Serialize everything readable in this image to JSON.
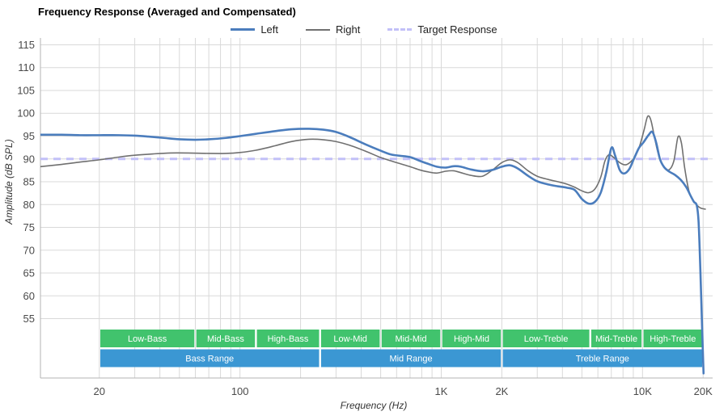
{
  "title": "Frequency Response (Averaged and Compensated)",
  "legend": [
    {
      "label": "Left",
      "color": "#4b7dbd",
      "style": "solid-thick"
    },
    {
      "label": "Right",
      "color": "#707070",
      "style": "solid-thin"
    },
    {
      "label": "Target Response",
      "color": "#c2c0f8",
      "style": "dashed"
    }
  ],
  "chart_data": {
    "type": "line",
    "title": "Frequency Response (Averaged and Compensated)",
    "xlabel": "Frequency (Hz)",
    "ylabel": "Amplitude (dB SPL)",
    "x_scale": "log",
    "xlim": [
      10.2,
      22300
    ],
    "ylim": [
      42,
      116.5
    ],
    "grid": true,
    "legend_position": "top-center",
    "y_ticks": [
      55,
      60,
      65,
      70,
      75,
      80,
      85,
      90,
      95,
      100,
      105,
      110,
      115
    ],
    "x_ticks": [
      {
        "value": 20,
        "label": "20"
      },
      {
        "value": 100,
        "label": "100"
      },
      {
        "value": 1000,
        "label": "1K"
      },
      {
        "value": 2000,
        "label": "2K"
      },
      {
        "value": 10000,
        "label": "10K"
      },
      {
        "value": 20000,
        "label": "20K"
      }
    ],
    "colors": {
      "grid": "#d9d9d9",
      "axis": "#b3b3b3",
      "tick_text": "#4a4a4a"
    },
    "target": {
      "name": "Target Response",
      "value": 90,
      "color": "#c2c0f8"
    },
    "series": [
      {
        "name": "Left",
        "color": "#4b7dbd",
        "width": 2.6,
        "points": [
          [
            10.2,
            95.3
          ],
          [
            13,
            95.3
          ],
          [
            16,
            95.2
          ],
          [
            20,
            95.2
          ],
          [
            25,
            95.2
          ],
          [
            30,
            95.1
          ],
          [
            35,
            94.9
          ],
          [
            42,
            94.6
          ],
          [
            50,
            94.3
          ],
          [
            60,
            94.2
          ],
          [
            70,
            94.3
          ],
          [
            85,
            94.6
          ],
          [
            100,
            95.0
          ],
          [
            120,
            95.5
          ],
          [
            150,
            96.1
          ],
          [
            180,
            96.5
          ],
          [
            220,
            96.6
          ],
          [
            260,
            96.4
          ],
          [
            300,
            95.9
          ],
          [
            350,
            94.8
          ],
          [
            420,
            93.2
          ],
          [
            500,
            91.8
          ],
          [
            560,
            91.0
          ],
          [
            620,
            90.7
          ],
          [
            700,
            90.4
          ],
          [
            780,
            89.6
          ],
          [
            850,
            89.0
          ],
          [
            950,
            88.3
          ],
          [
            1050,
            88.1
          ],
          [
            1150,
            88.4
          ],
          [
            1250,
            88.3
          ],
          [
            1400,
            87.7
          ],
          [
            1600,
            87.3
          ],
          [
            1800,
            87.6
          ],
          [
            2000,
            88.3
          ],
          [
            2200,
            88.6
          ],
          [
            2400,
            87.9
          ],
          [
            2700,
            86.3
          ],
          [
            3000,
            85.1
          ],
          [
            3400,
            84.4
          ],
          [
            3800,
            84.0
          ],
          [
            4200,
            83.7
          ],
          [
            4600,
            83.2
          ],
          [
            5000,
            81.2
          ],
          [
            5400,
            80.2
          ],
          [
            5800,
            80.6
          ],
          [
            6200,
            82.6
          ],
          [
            6600,
            87.0
          ],
          [
            7000,
            92.4
          ],
          [
            7300,
            90.8
          ],
          [
            7700,
            87.6
          ],
          [
            8100,
            86.8
          ],
          [
            8600,
            87.8
          ],
          [
            9100,
            90.2
          ],
          [
            9600,
            92.4
          ],
          [
            10100,
            93.6
          ],
          [
            10700,
            95.2
          ],
          [
            11200,
            95.9
          ],
          [
            11700,
            93.5
          ],
          [
            12200,
            90.0
          ],
          [
            12800,
            88.2
          ],
          [
            13600,
            87.2
          ],
          [
            14500,
            86.5
          ],
          [
            15500,
            85.4
          ],
          [
            16500,
            83.8
          ],
          [
            17300,
            82.0
          ],
          [
            18000,
            80.6
          ],
          [
            18600,
            79.8
          ],
          [
            19000,
            76.0
          ],
          [
            19400,
            65.0
          ],
          [
            19800,
            52.0
          ],
          [
            20100,
            43.0
          ]
        ]
      },
      {
        "name": "Right",
        "color": "#707070",
        "width": 1.6,
        "points": [
          [
            10.2,
            88.3
          ],
          [
            13,
            88.8
          ],
          [
            16,
            89.3
          ],
          [
            20,
            89.8
          ],
          [
            25,
            90.4
          ],
          [
            30,
            90.8
          ],
          [
            37,
            91.1
          ],
          [
            45,
            91.3
          ],
          [
            55,
            91.3
          ],
          [
            70,
            91.2
          ],
          [
            85,
            91.2
          ],
          [
            100,
            91.4
          ],
          [
            120,
            91.9
          ],
          [
            150,
            92.9
          ],
          [
            180,
            93.8
          ],
          [
            220,
            94.3
          ],
          [
            260,
            94.2
          ],
          [
            300,
            93.8
          ],
          [
            350,
            93.0
          ],
          [
            420,
            91.7
          ],
          [
            500,
            90.3
          ],
          [
            560,
            89.6
          ],
          [
            620,
            89.0
          ],
          [
            700,
            88.3
          ],
          [
            780,
            87.6
          ],
          [
            850,
            87.2
          ],
          [
            950,
            86.9
          ],
          [
            1050,
            87.3
          ],
          [
            1150,
            87.4
          ],
          [
            1250,
            87.0
          ],
          [
            1400,
            86.4
          ],
          [
            1600,
            86.2
          ],
          [
            1800,
            87.6
          ],
          [
            2000,
            89.2
          ],
          [
            2200,
            89.8
          ],
          [
            2400,
            89.2
          ],
          [
            2700,
            87.4
          ],
          [
            3000,
            86.2
          ],
          [
            3400,
            85.5
          ],
          [
            3800,
            85.0
          ],
          [
            4200,
            84.5
          ],
          [
            4600,
            83.8
          ],
          [
            5000,
            83.0
          ],
          [
            5400,
            82.6
          ],
          [
            5800,
            83.4
          ],
          [
            6200,
            86.0
          ],
          [
            6500,
            89.5
          ],
          [
            6800,
            90.9
          ],
          [
            7200,
            90.3
          ],
          [
            7700,
            89.2
          ],
          [
            8200,
            88.7
          ],
          [
            8700,
            89.3
          ],
          [
            9200,
            90.6
          ],
          [
            9700,
            93.0
          ],
          [
            10200,
            96.5
          ],
          [
            10600,
            99.3
          ],
          [
            11000,
            98.5
          ],
          [
            11500,
            94.5
          ],
          [
            12000,
            91.0
          ],
          [
            12700,
            88.5
          ],
          [
            13500,
            87.6
          ],
          [
            14300,
            89.5
          ],
          [
            15000,
            94.8
          ],
          [
            15600,
            93.5
          ],
          [
            16200,
            88.0
          ],
          [
            17000,
            83.0
          ],
          [
            17800,
            81.0
          ],
          [
            18700,
            79.8
          ],
          [
            19500,
            79.2
          ],
          [
            20500,
            79.0
          ]
        ]
      }
    ],
    "bands": {
      "sub_color": "#41c36d",
      "range_color": "#3b97d3",
      "sub_bands": [
        {
          "label": "Low-Bass",
          "from": 20,
          "to": 60
        },
        {
          "label": "Mid-Bass",
          "from": 60,
          "to": 120
        },
        {
          "label": "High-Bass",
          "from": 120,
          "to": 250
        },
        {
          "label": "Low-Mid",
          "from": 250,
          "to": 500
        },
        {
          "label": "Mid-Mid",
          "from": 500,
          "to": 1000
        },
        {
          "label": "High-Mid",
          "from": 1000,
          "to": 2000
        },
        {
          "label": "Low-Treble",
          "from": 2000,
          "to": 5500
        },
        {
          "label": "Mid-Treble",
          "from": 5500,
          "to": 10000
        },
        {
          "label": "High-Treble",
          "from": 10000,
          "to": 20000
        }
      ],
      "ranges": [
        {
          "label": "Bass Range",
          "from": 20,
          "to": 250
        },
        {
          "label": "Mid Range",
          "from": 250,
          "to": 2000
        },
        {
          "label": "Treble Range",
          "from": 2000,
          "to": 20000
        }
      ]
    }
  }
}
